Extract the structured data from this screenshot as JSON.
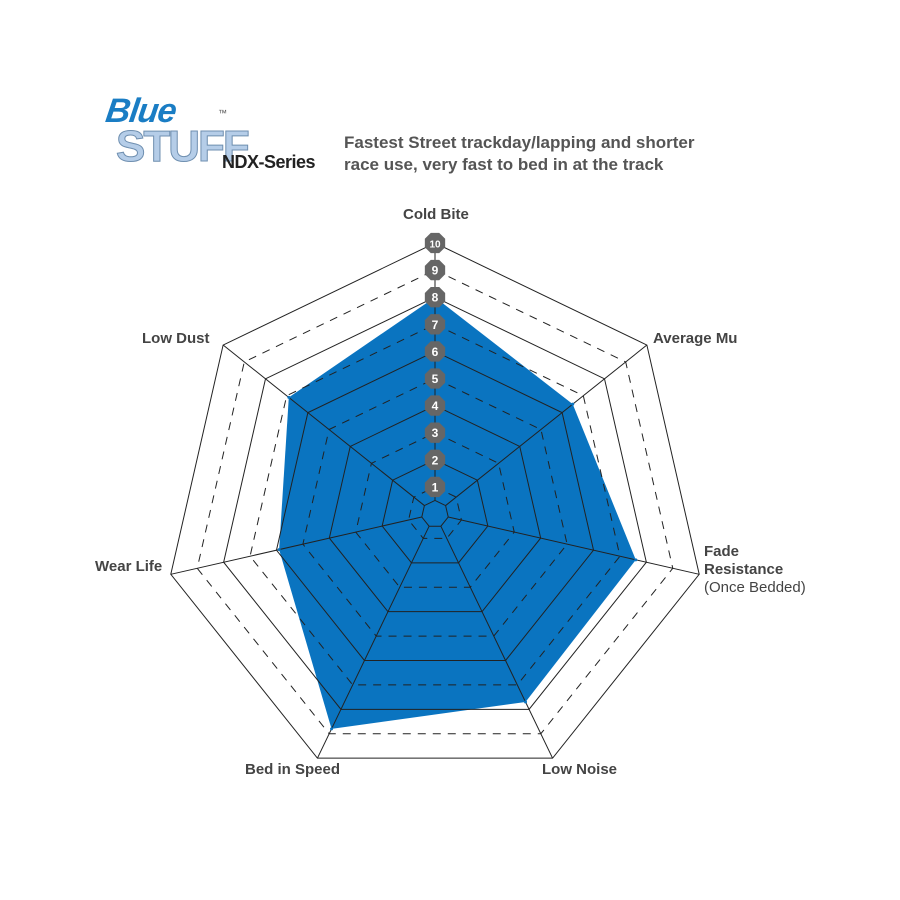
{
  "header": {
    "logo_line1": "Blue",
    "logo_line2": "STUFF",
    "logo_tm": "™",
    "series": "NDX-Series",
    "description_line1": "Fastest Street trackday/lapping and shorter",
    "description_line2": "race use, very fast to bed in at the track"
  },
  "chart_data": {
    "type": "radar",
    "title": "",
    "axes": [
      "Cold Bite",
      "Average Mu",
      "Fade Resistance",
      "Low Noise",
      "Bed in Speed",
      "Wear Life",
      "Low Dust"
    ],
    "axis_sublabels": {
      "Fade Resistance": "(Once Bedded)"
    },
    "values": [
      8,
      6.5,
      7.6,
      7.7,
      8.8,
      5.9,
      6.9
    ],
    "range": [
      0,
      10
    ],
    "tick_labels": [
      "1",
      "2",
      "3",
      "4",
      "5",
      "6",
      "7",
      "8",
      "9",
      "10"
    ],
    "fill_color": "#0a74c0",
    "grid": true
  }
}
